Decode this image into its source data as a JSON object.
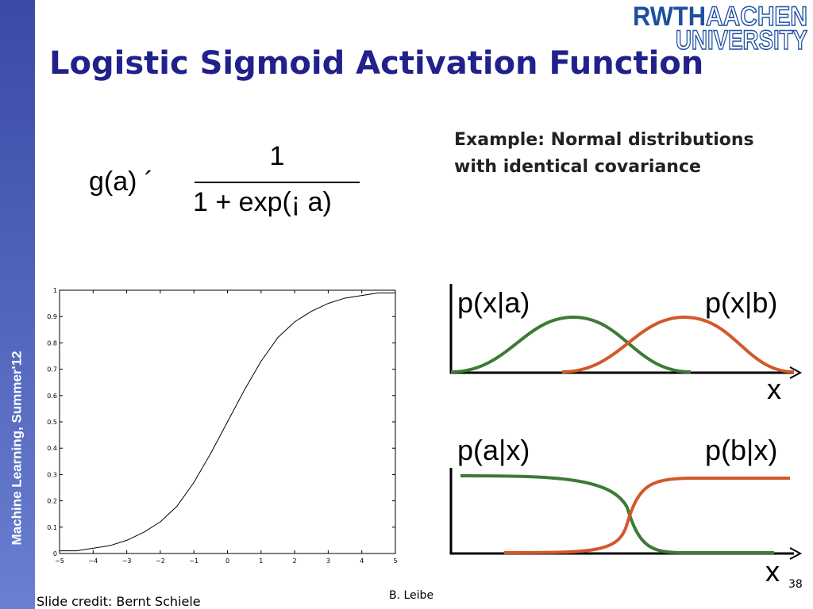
{
  "sidebar": "Machine Learning, Summer'12",
  "logo": {
    "left": "RWTH",
    "right": "AACHEN",
    "bottom": "UNIVERSITY"
  },
  "title": "Logistic Sigmoid Activation Function",
  "formula": {
    "lhs": "g(a) ´",
    "numerator": "1",
    "denominator": "1 + exp(¡ a)"
  },
  "example": {
    "line1": "Example: Normal distributions",
    "line2": "with identical covariance"
  },
  "chart_data": {
    "type": "line",
    "x": [
      -5,
      -4.5,
      -4,
      -3.5,
      -3,
      -2.5,
      -2,
      -1.5,
      -1,
      -0.5,
      0,
      0.5,
      1,
      1.5,
      2,
      2.5,
      3,
      3.5,
      4,
      4.5,
      5
    ],
    "series": [
      {
        "color": "#000000",
        "values": [
          0.01,
          0.01,
          0.02,
          0.03,
          0.05,
          0.08,
          0.12,
          0.18,
          0.27,
          0.38,
          0.5,
          0.62,
          0.73,
          0.82,
          0.88,
          0.92,
          0.95,
          0.97,
          0.98,
          0.99,
          0.99
        ]
      }
    ],
    "xlim": [
      -5,
      5
    ],
    "ylim": [
      0,
      1
    ],
    "xticks": [
      {
        "value": -5,
        "label": "−5"
      },
      {
        "value": -4,
        "label": "−4"
      },
      {
        "value": -3,
        "label": "−3"
      },
      {
        "value": -2,
        "label": "−2"
      },
      {
        "value": -1,
        "label": "−1"
      },
      0,
      1,
      2,
      3,
      4,
      5
    ],
    "yticks": [
      0,
      0.1,
      0.2,
      0.3,
      0.4,
      0.5,
      0.6,
      0.7,
      0.8,
      0.9,
      1
    ],
    "grid": false
  },
  "diagram": {
    "top": {
      "left": "p(x|a)",
      "right": "p(x|b)",
      "axis": "x"
    },
    "bottom": {
      "left": "p(a|x)",
      "right": "p(b|x)",
      "axis": "x"
    }
  },
  "footer": {
    "credit": "Slide credit: Bernt Schiele",
    "author": "B. Leibe",
    "page": "38"
  }
}
